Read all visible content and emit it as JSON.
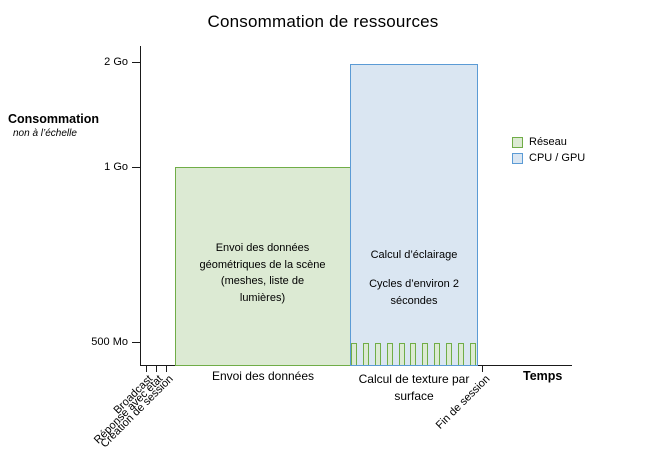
{
  "title": "Consommation de ressources",
  "y_axis": {
    "label": "Consommation",
    "note": "non à l’échelle",
    "ticks": {
      "t2go": "2 Go",
      "t1go": "1 Go",
      "t500mo": "500 Mo"
    }
  },
  "x_axis": {
    "label": "Temps",
    "rotated_ticks": {
      "broadcast": "Broadcast",
      "reponse": "Réponse avec état",
      "creation": "Création de session",
      "fin": "Fin de session"
    },
    "phase_labels": {
      "envoi": "Envoi des données",
      "calcul_texture": "Calcul de texture par surface"
    }
  },
  "legend": {
    "reseau": "Réseau",
    "cpu_gpu": "CPU / GPU"
  },
  "boxes": {
    "green_annotation": "Envoi des données géométriques de la scène (meshes, liste de lumières)",
    "blue_line1": "Calcul d’éclairage",
    "blue_line2": "Cycles d’environ 2 sécondes"
  },
  "colors": {
    "green_border": "#70ad47",
    "green_fill": "#dcead3",
    "blue_border": "#5b9bd5",
    "blue_fill": "#dae6f2",
    "axis": "#1a1a1a"
  },
  "spikes": {
    "count": 11
  },
  "chart_data": {
    "type": "area",
    "title": "Consommation de ressources",
    "xlabel": "Temps",
    "ylabel": "Consommation",
    "ylabel_note": "non à l’échelle",
    "y_ticks": [
      "500 Mo",
      "1 Go",
      "2 Go"
    ],
    "grid": false,
    "legend": [
      "Réseau",
      "CPU / GPU"
    ],
    "legend_position": "right",
    "x_event_ticks": [
      "Broadcast",
      "Réponse avec état",
      "Création de session",
      "Fin de session"
    ],
    "phases": [
      {
        "x_label": "Envoi des données",
        "series": "Réseau",
        "consumption": "1 Go",
        "annotation": "Envoi des données géométriques de la scène (meshes, liste de lumières)"
      },
      {
        "x_label": "Calcul de texture par surface",
        "series": "CPU / GPU",
        "consumption": "2 Go",
        "annotation": "Calcul d’éclairage — Cycles d’environ 2 sécondes",
        "network_overlay": {
          "series": "Réseau",
          "consumption": "500 Mo",
          "pattern": "repeated short spikes",
          "spike_count": 11
        }
      }
    ]
  }
}
